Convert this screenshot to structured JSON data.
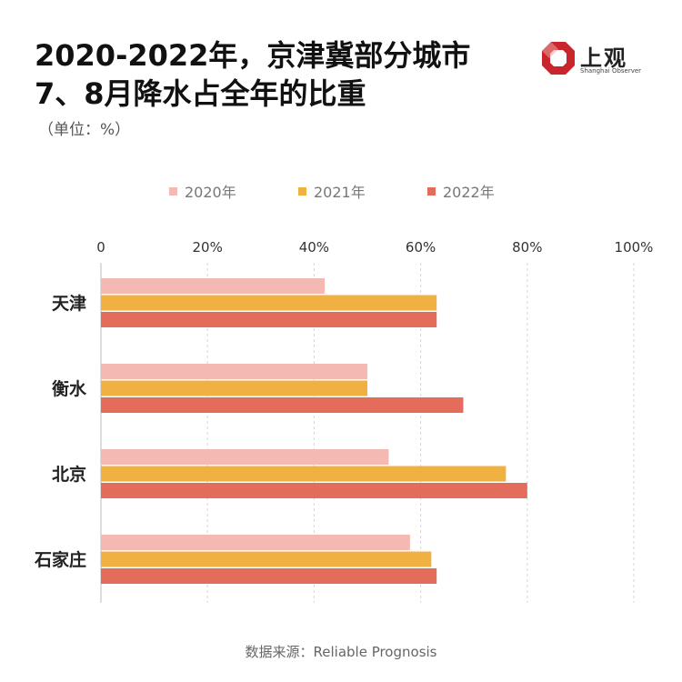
{
  "header": {
    "title_line1": "2020-2022年，京津冀部分城市",
    "title_line2": "7、8月降水占全年的比重",
    "unit": "（单位：%）"
  },
  "logo": {
    "cn": "上观",
    "en": "Shanghai Observer",
    "color": "#c8252c"
  },
  "chart_data": {
    "type": "bar",
    "orientation": "horizontal",
    "categories": [
      "天津",
      "衡水",
      "北京",
      "石家庄"
    ],
    "series": [
      {
        "name": "2020年",
        "values": [
          42,
          50,
          54,
          58
        ],
        "color": "#f4b9b2"
      },
      {
        "name": "2021年",
        "values": [
          63,
          50,
          76,
          62
        ],
        "color": "#f0b042"
      },
      {
        "name": "2022年",
        "values": [
          63,
          68,
          80,
          63
        ],
        "color": "#e46c5a"
      }
    ],
    "xlim": [
      0,
      100
    ],
    "ticks": [
      0,
      20,
      40,
      60,
      80,
      100
    ],
    "tick_labels": [
      "0",
      "20%",
      "40%",
      "60%",
      "80%",
      "100%"
    ],
    "legend": "top",
    "grid": true
  },
  "source": "数据来源：Reliable Prognosis"
}
